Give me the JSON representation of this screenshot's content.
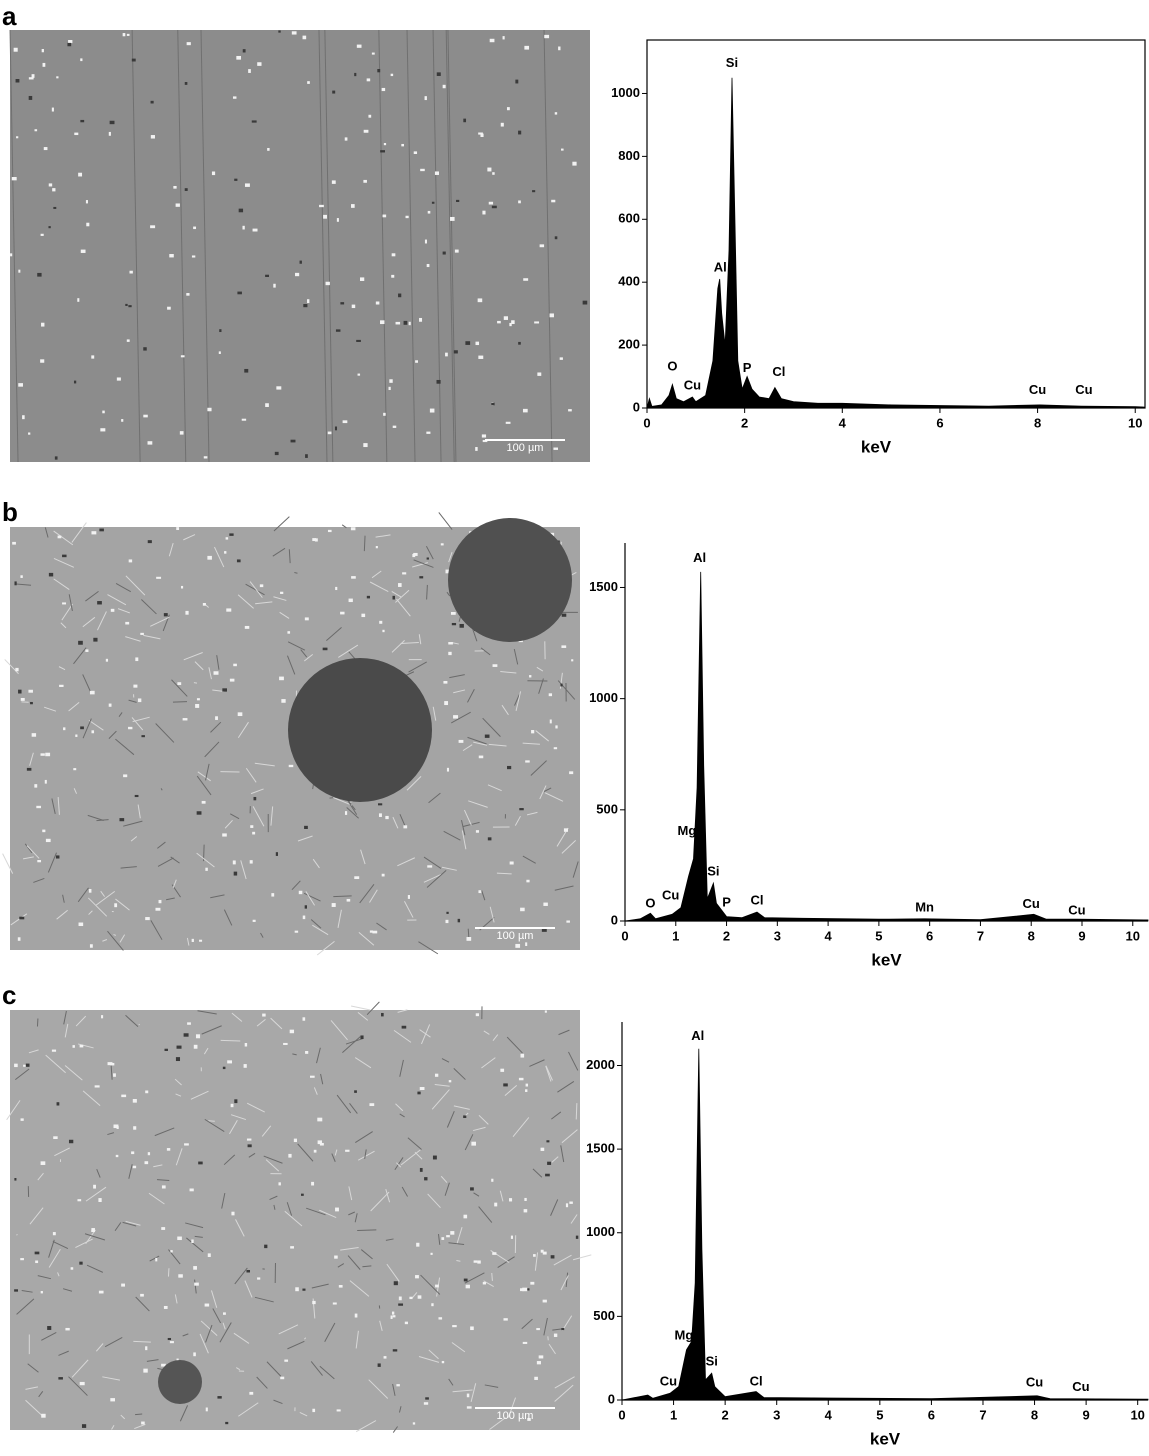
{
  "panels": [
    {
      "label": "a",
      "scale_bar": "100 µm"
    },
    {
      "label": "b",
      "scale_bar": "100 µm"
    },
    {
      "label": "c",
      "scale_bar": "100 µm"
    }
  ],
  "chart_data": [
    {
      "type": "area",
      "x_label": "keV",
      "color": "#000000",
      "frame": true,
      "xlim": [
        0,
        10.2
      ],
      "ylim": [
        0,
        1170
      ],
      "xticks": [
        0,
        2,
        4,
        6,
        8,
        10
      ],
      "yticks": [
        0,
        200,
        400,
        600,
        800,
        1000
      ],
      "x": [
        0,
        0.05,
        0.1,
        0.3,
        0.45,
        0.52,
        0.6,
        0.75,
        0.93,
        1.0,
        1.2,
        1.35,
        1.45,
        1.49,
        1.53,
        1.6,
        1.68,
        1.74,
        1.8,
        1.86,
        1.95,
        2.05,
        2.15,
        2.3,
        2.5,
        2.62,
        2.75,
        3.0,
        3.5,
        4,
        5,
        6,
        7,
        8.05,
        8.9,
        10,
        10.2
      ],
      "values": [
        0,
        30,
        5,
        10,
        40,
        75,
        30,
        20,
        35,
        20,
        40,
        150,
        380,
        410,
        300,
        200,
        500,
        1050,
        600,
        150,
        60,
        100,
        60,
        35,
        30,
        65,
        30,
        20,
        15,
        15,
        10,
        8,
        6,
        10,
        6,
        4,
        3
      ],
      "annotations": [
        {
          "text": "O",
          "x": 0.52,
          "y": 130
        },
        {
          "text": "Cu",
          "x": 0.93,
          "y": 70
        },
        {
          "text": "Al",
          "x": 1.5,
          "y": 445
        },
        {
          "text": "Si",
          "x": 1.74,
          "y": 1095
        },
        {
          "text": "P",
          "x": 2.05,
          "y": 125
        },
        {
          "text": "Cl",
          "x": 2.7,
          "y": 112
        },
        {
          "text": "Cu",
          "x": 8.0,
          "y": 55
        },
        {
          "text": "Cu",
          "x": 8.95,
          "y": 55
        }
      ]
    },
    {
      "type": "area",
      "x_label": "keV",
      "color": "#000000",
      "frame": false,
      "xlim": [
        0,
        10.3
      ],
      "ylim": [
        0,
        1700
      ],
      "xticks": [
        0,
        1,
        2,
        3,
        4,
        5,
        6,
        7,
        8,
        9,
        10
      ],
      "yticks": [
        0,
        500,
        1000,
        1500
      ],
      "x": [
        0,
        0.3,
        0.5,
        0.6,
        0.93,
        1.1,
        1.25,
        1.35,
        1.42,
        1.49,
        1.55,
        1.62,
        1.74,
        1.8,
        2.0,
        2.3,
        2.6,
        2.75,
        3.5,
        5,
        5.9,
        7,
        8.05,
        8.3,
        8.9,
        10.3
      ],
      "values": [
        0,
        10,
        35,
        10,
        30,
        60,
        200,
        280,
        600,
        1570,
        700,
        100,
        170,
        80,
        20,
        15,
        40,
        15,
        12,
        8,
        10,
        6,
        30,
        8,
        8,
        5
      ],
      "annotations": [
        {
          "text": "O",
          "x": 0.5,
          "y": 77
        },
        {
          "text": "Cu",
          "x": 0.9,
          "y": 113
        },
        {
          "text": "Mg",
          "x": 1.22,
          "y": 402
        },
        {
          "text": "Al",
          "x": 1.47,
          "y": 1630
        },
        {
          "text": "Si",
          "x": 1.74,
          "y": 221
        },
        {
          "text": "P",
          "x": 2.0,
          "y": 81
        },
        {
          "text": "Cl",
          "x": 2.6,
          "y": 90
        },
        {
          "text": "Mn",
          "x": 5.9,
          "y": 59
        },
        {
          "text": "Cu",
          "x": 8.0,
          "y": 75
        },
        {
          "text": "Cu",
          "x": 8.9,
          "y": 45
        }
      ]
    },
    {
      "type": "area",
      "x_label": "keV",
      "color": "#000000",
      "frame": false,
      "xlim": [
        0,
        10.2
      ],
      "ylim": [
        0,
        2260
      ],
      "xticks": [
        0,
        1,
        2,
        3,
        4,
        5,
        6,
        7,
        8,
        9,
        10
      ],
      "yticks": [
        0,
        500,
        1000,
        1500,
        2000
      ],
      "x": [
        0,
        0.5,
        0.6,
        0.93,
        1.1,
        1.25,
        1.35,
        1.42,
        1.49,
        1.55,
        1.62,
        1.74,
        1.8,
        2.0,
        2.6,
        2.75,
        4,
        6,
        8.05,
        8.3,
        10.2
      ],
      "values": [
        0,
        30,
        10,
        40,
        80,
        300,
        350,
        700,
        2100,
        900,
        120,
        160,
        80,
        20,
        50,
        15,
        12,
        8,
        25,
        8,
        5
      ],
      "annotations": [
        {
          "text": "Cu",
          "x": 0.9,
          "y": 108
        },
        {
          "text": "Mg",
          "x": 1.2,
          "y": 383
        },
        {
          "text": "Al",
          "x": 1.47,
          "y": 2174
        },
        {
          "text": "Si",
          "x": 1.74,
          "y": 228
        },
        {
          "text": "Cl",
          "x": 2.6,
          "y": 108
        },
        {
          "text": "Cu",
          "x": 8.0,
          "y": 100
        },
        {
          "text": "Cu",
          "x": 8.9,
          "y": 75
        }
      ]
    }
  ]
}
